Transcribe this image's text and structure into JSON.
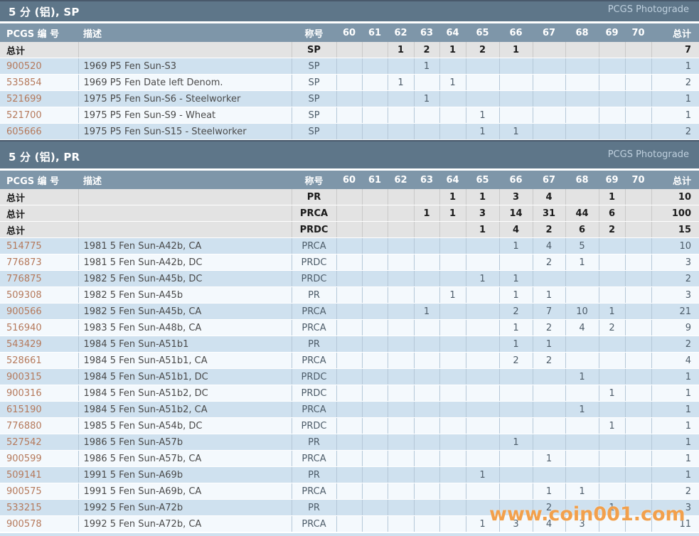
{
  "watermark": "www.coin001.com",
  "photograde_label": "PCGS Photograde",
  "columns": {
    "id": "PCGS 编 号",
    "desc": "描述",
    "designation": "称号",
    "total": "总计"
  },
  "grade_columns": [
    "60",
    "61",
    "62",
    "63",
    "64",
    "65",
    "66",
    "67",
    "68",
    "69",
    "70"
  ],
  "colors": {
    "bar": "#5e7689",
    "bar_edge": "#49596b",
    "header": "#7e96a9",
    "row_blue": "#cfe1ef",
    "row_white": "#f4f9fd",
    "total_row": "#e3e3e3",
    "id_link": "#b5795b",
    "watermark": "#f2a04c"
  },
  "sections": [
    {
      "title": "5 分 (铝), SP",
      "total_rows": [
        {
          "label": "总计",
          "designation": "SP",
          "grades": [
            "",
            "",
            "1",
            "2",
            "1",
            "2",
            "1",
            "",
            "",
            "",
            ""
          ],
          "total": "7"
        }
      ],
      "rows": [
        {
          "id": "900520",
          "desc": "1969 P5 Fen Sun-S3",
          "designation": "SP",
          "grades": [
            "",
            "",
            "",
            "1",
            "",
            "",
            "",
            "",
            "",
            "",
            ""
          ],
          "total": "1"
        },
        {
          "id": "535854",
          "desc": "1969 P5 Fen Date left Denom.",
          "designation": "SP",
          "grades": [
            "",
            "",
            "1",
            "",
            "1",
            "",
            "",
            "",
            "",
            "",
            ""
          ],
          "total": "2"
        },
        {
          "id": "521699",
          "desc": "1975 P5 Fen Sun-S6 - Steelworker",
          "designation": "SP",
          "grades": [
            "",
            "",
            "",
            "1",
            "",
            "",
            "",
            "",
            "",
            "",
            ""
          ],
          "total": "1"
        },
        {
          "id": "521700",
          "desc": "1975 P5 Fen Sun-S9 - Wheat",
          "designation": "SP",
          "grades": [
            "",
            "",
            "",
            "",
            "",
            "1",
            "",
            "",
            "",
            "",
            ""
          ],
          "total": "1"
        },
        {
          "id": "605666",
          "desc": "1975 P5 Fen Sun-S15 - Steelworker",
          "designation": "SP",
          "grades": [
            "",
            "",
            "",
            "",
            "",
            "1",
            "1",
            "",
            "",
            "",
            ""
          ],
          "total": "2"
        }
      ]
    },
    {
      "title": "5 分 (铝), PR",
      "total_rows": [
        {
          "label": "总计",
          "designation": "PR",
          "grades": [
            "",
            "",
            "",
            "",
            "1",
            "1",
            "3",
            "4",
            "",
            "1",
            ""
          ],
          "total": "10"
        },
        {
          "label": "总计",
          "designation": "PRCA",
          "grades": [
            "",
            "",
            "",
            "1",
            "1",
            "3",
            "14",
            "31",
            "44",
            "6",
            ""
          ],
          "total": "100"
        },
        {
          "label": "总计",
          "designation": "PRDC",
          "grades": [
            "",
            "",
            "",
            "",
            "",
            "1",
            "4",
            "2",
            "6",
            "2",
            ""
          ],
          "total": "15"
        }
      ],
      "rows": [
        {
          "id": "514775",
          "desc": "1981 5 Fen Sun-A42b, CA",
          "designation": "PRCA",
          "grades": [
            "",
            "",
            "",
            "",
            "",
            "",
            "1",
            "4",
            "5",
            "",
            ""
          ],
          "total": "10"
        },
        {
          "id": "776873",
          "desc": "1981 5 Fen Sun-A42b, DC",
          "designation": "PRDC",
          "grades": [
            "",
            "",
            "",
            "",
            "",
            "",
            "",
            "2",
            "1",
            "",
            ""
          ],
          "total": "3"
        },
        {
          "id": "776875",
          "desc": "1982 5 Fen Sun-A45b, DC",
          "designation": "PRDC",
          "grades": [
            "",
            "",
            "",
            "",
            "",
            "1",
            "1",
            "",
            "",
            "",
            ""
          ],
          "total": "2"
        },
        {
          "id": "509308",
          "desc": "1982 5 Fen Sun-A45b",
          "designation": "PR",
          "grades": [
            "",
            "",
            "",
            "",
            "1",
            "",
            "1",
            "1",
            "",
            "",
            ""
          ],
          "total": "3"
        },
        {
          "id": "900566",
          "desc": "1982 5 Fen Sun-A45b, CA",
          "designation": "PRCA",
          "grades": [
            "",
            "",
            "",
            "1",
            "",
            "",
            "2",
            "7",
            "10",
            "1",
            ""
          ],
          "total": "21"
        },
        {
          "id": "516940",
          "desc": "1983 5 Fen Sun-A48b, CA",
          "designation": "PRCA",
          "grades": [
            "",
            "",
            "",
            "",
            "",
            "",
            "1",
            "2",
            "4",
            "2",
            ""
          ],
          "total": "9"
        },
        {
          "id": "543429",
          "desc": "1984 5 Fen Sun-A51b1",
          "designation": "PR",
          "grades": [
            "",
            "",
            "",
            "",
            "",
            "",
            "1",
            "1",
            "",
            "",
            ""
          ],
          "total": "2"
        },
        {
          "id": "528661",
          "desc": "1984 5 Fen Sun-A51b1, CA",
          "designation": "PRCA",
          "grades": [
            "",
            "",
            "",
            "",
            "",
            "",
            "2",
            "2",
            "",
            "",
            ""
          ],
          "total": "4"
        },
        {
          "id": "900315",
          "desc": "1984 5 Fen Sun-A51b1, DC",
          "designation": "PRDC",
          "grades": [
            "",
            "",
            "",
            "",
            "",
            "",
            "",
            "",
            "1",
            "",
            ""
          ],
          "total": "1"
        },
        {
          "id": "900316",
          "desc": "1984 5 Fen Sun-A51b2, DC",
          "designation": "PRDC",
          "grades": [
            "",
            "",
            "",
            "",
            "",
            "",
            "",
            "",
            "",
            "1",
            ""
          ],
          "total": "1"
        },
        {
          "id": "615190",
          "desc": "1984 5 Fen Sun-A51b2, CA",
          "designation": "PRCA",
          "grades": [
            "",
            "",
            "",
            "",
            "",
            "",
            "",
            "",
            "1",
            "",
            ""
          ],
          "total": "1"
        },
        {
          "id": "776880",
          "desc": "1985 5 Fen Sun-A54b, DC",
          "designation": "PRDC",
          "grades": [
            "",
            "",
            "",
            "",
            "",
            "",
            "",
            "",
            "",
            "1",
            ""
          ],
          "total": "1"
        },
        {
          "id": "527542",
          "desc": "1986 5 Fen Sun-A57b",
          "designation": "PR",
          "grades": [
            "",
            "",
            "",
            "",
            "",
            "",
            "1",
            "",
            "",
            "",
            ""
          ],
          "total": "1"
        },
        {
          "id": "900599",
          "desc": "1986 5 Fen Sun-A57b, CA",
          "designation": "PRCA",
          "grades": [
            "",
            "",
            "",
            "",
            "",
            "",
            "",
            "1",
            "",
            "",
            ""
          ],
          "total": "1"
        },
        {
          "id": "509141",
          "desc": "1991 5 Fen Sun-A69b",
          "designation": "PR",
          "grades": [
            "",
            "",
            "",
            "",
            "",
            "1",
            "",
            "",
            "",
            "",
            ""
          ],
          "total": "1"
        },
        {
          "id": "900575",
          "desc": "1991 5 Fen Sun-A69b, CA",
          "designation": "PRCA",
          "grades": [
            "",
            "",
            "",
            "",
            "",
            "",
            "",
            "1",
            "1",
            "",
            ""
          ],
          "total": "2"
        },
        {
          "id": "533215",
          "desc": "1992 5 Fen Sun-A72b",
          "designation": "PR",
          "grades": [
            "",
            "",
            "",
            "",
            "",
            "",
            "",
            "2",
            "",
            "1",
            ""
          ],
          "total": "3"
        },
        {
          "id": "900578",
          "desc": "1992 5 Fen Sun-A72b, CA",
          "designation": "PRCA",
          "grades": [
            "",
            "",
            "",
            "",
            "",
            "1",
            "3",
            "4",
            "3",
            "",
            ""
          ],
          "total": "11"
        }
      ]
    }
  ]
}
